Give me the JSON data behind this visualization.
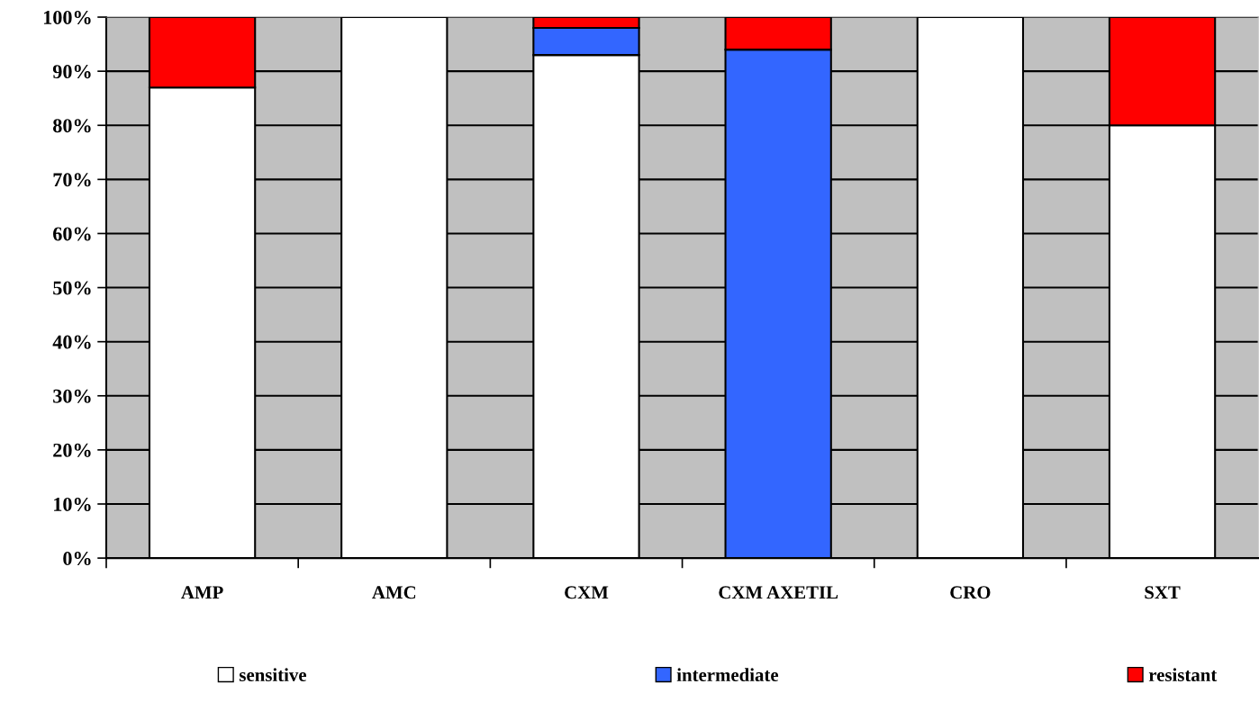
{
  "chart_data": {
    "type": "bar",
    "stacked": true,
    "categories": [
      "AMP",
      "AMC",
      "CXM",
      "CXM AXETIL",
      "CRO",
      "SXT"
    ],
    "series": [
      {
        "name": "sensitive",
        "color": "#ffffff",
        "values": [
          87,
          100,
          93,
          null,
          100,
          80
        ]
      },
      {
        "name": "intermediate",
        "color": "#3366ff",
        "values": [
          null,
          null,
          5,
          94,
          null,
          null
        ]
      },
      {
        "name": "resistant",
        "color": "#ff0000",
        "values": [
          13,
          null,
          2,
          6,
          null,
          20
        ]
      }
    ],
    "ylim": [
      0,
      100
    ],
    "yticks": [
      {
        "value": 0,
        "label": "0%"
      },
      {
        "value": 10,
        "label": "10%"
      },
      {
        "value": 20,
        "label": "20%"
      },
      {
        "value": 30,
        "label": "30%"
      },
      {
        "value": 40,
        "label": "40%"
      },
      {
        "value": 50,
        "label": "50%"
      },
      {
        "value": 60,
        "label": "60%"
      },
      {
        "value": 70,
        "label": "70%"
      },
      {
        "value": 80,
        "label": "80%"
      },
      {
        "value": 90,
        "label": "90%"
      },
      {
        "value": 100,
        "label": "100%"
      }
    ],
    "grid": "y",
    "legend": "bottom"
  }
}
